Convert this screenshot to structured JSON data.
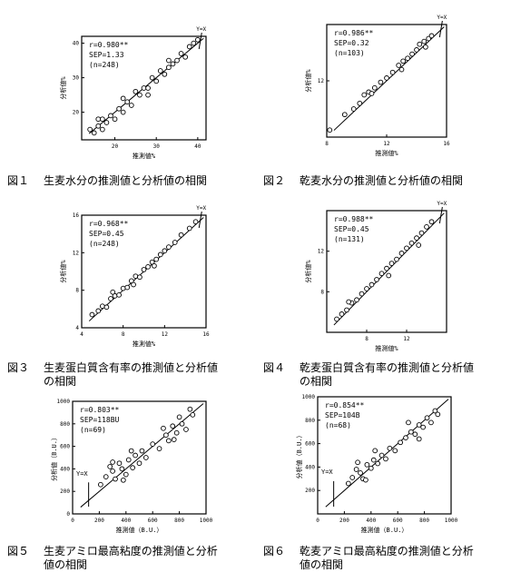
{
  "figures": [
    {
      "id": "fig1",
      "figure_number": "図１",
      "caption": "生麦水分の推測値と分析値の相関",
      "caption_line2": ""
    },
    {
      "id": "fig2",
      "figure_number": "図２",
      "caption": "乾麦水分の推測値と分析値の相関",
      "caption_line2": ""
    },
    {
      "id": "fig3",
      "figure_number": "図３",
      "caption": "生麦蛋白質含有率の推測値と分析値",
      "caption_line2": "の相関"
    },
    {
      "id": "fig4",
      "figure_number": "図４",
      "caption": "乾麦蛋白質含有率の推測値と分析値",
      "caption_line2": "の相関"
    },
    {
      "id": "fig5",
      "figure_number": "図５",
      "caption": "生麦アミロ最高粘度の推測値と分析",
      "caption_line2": "値の相関"
    },
    {
      "id": "fig6",
      "figure_number": "図６",
      "caption": "乾麦アミロ最高粘度の推測値と分析",
      "caption_line2": "値の相関"
    }
  ],
  "chart_data": [
    {
      "type": "scatter",
      "title": "",
      "xlabel": "推測値%",
      "ylabel": "分析値%",
      "xlim": [
        12,
        42
      ],
      "ylim": [
        12,
        42
      ],
      "xticks": [
        20,
        30,
        40
      ],
      "yticks": [
        20,
        30,
        40
      ],
      "stats": [
        "r=0.980**",
        "SEP=1.33",
        "(n=248)"
      ],
      "identity_label": "Y=X",
      "points": [
        [
          14,
          15
        ],
        [
          15,
          14
        ],
        [
          16,
          16
        ],
        [
          17,
          15
        ],
        [
          17,
          18
        ],
        [
          18,
          17
        ],
        [
          19,
          19
        ],
        [
          20,
          18
        ],
        [
          21,
          21
        ],
        [
          22,
          20
        ],
        [
          23,
          23
        ],
        [
          24,
          22
        ],
        [
          25,
          26
        ],
        [
          26,
          25
        ],
        [
          27,
          27
        ],
        [
          28,
          27
        ],
        [
          29,
          30
        ],
        [
          30,
          29
        ],
        [
          31,
          32
        ],
        [
          32,
          31
        ],
        [
          33,
          33
        ],
        [
          34,
          34
        ],
        [
          35,
          35
        ],
        [
          36,
          37
        ],
        [
          37,
          36
        ],
        [
          38,
          39
        ],
        [
          39,
          40
        ],
        [
          40,
          41
        ],
        [
          16,
          18
        ],
        [
          22,
          24
        ],
        [
          28,
          25
        ],
        [
          33,
          35
        ]
      ]
    },
    {
      "type": "scatter",
      "title": "",
      "xlabel": "推測値%",
      "ylabel": "分析値%",
      "xlim": [
        8,
        16
      ],
      "ylim": [
        8,
        16
      ],
      "xticks": [
        8,
        12,
        16
      ],
      "yticks": [
        12
      ],
      "stats": [
        "r=0.986**",
        "SEP=0.32",
        "(n=103)"
      ],
      "identity_label": "Y=X",
      "points": [
        [
          8.2,
          8.5
        ],
        [
          9.2,
          9.6
        ],
        [
          9.8,
          10
        ],
        [
          10.2,
          10.4
        ],
        [
          10.5,
          11
        ],
        [
          10.8,
          11.2
        ],
        [
          11.2,
          11.5
        ],
        [
          11.6,
          11.9
        ],
        [
          12,
          12.2
        ],
        [
          12.4,
          12.6
        ],
        [
          12.8,
          13.1
        ],
        [
          13.1,
          13.4
        ],
        [
          13.4,
          13.6
        ],
        [
          13.7,
          13.9
        ],
        [
          14,
          14.2
        ],
        [
          14.2,
          14.6
        ],
        [
          14.5,
          14.8
        ],
        [
          14.8,
          15
        ],
        [
          15,
          15.2
        ],
        [
          11,
          11.1
        ],
        [
          13,
          12.8
        ],
        [
          14.6,
          14.4
        ]
      ]
    },
    {
      "type": "scatter",
      "title": "",
      "xlabel": "推測値%",
      "ylabel": "分析値%",
      "xlim": [
        4,
        16
      ],
      "ylim": [
        4,
        16
      ],
      "xticks": [
        4,
        8,
        12,
        16
      ],
      "yticks": [
        4,
        8,
        12,
        16
      ],
      "stats": [
        "r=0.968**",
        "SEP=0.45",
        "(n=248)"
      ],
      "identity_label": "Y=X",
      "points": [
        [
          5,
          5.4
        ],
        [
          5.6,
          5.8
        ],
        [
          6,
          6.3
        ],
        [
          6.4,
          6.2
        ],
        [
          6.8,
          7.1
        ],
        [
          7.2,
          7.4
        ],
        [
          7.6,
          7.5
        ],
        [
          8,
          8.2
        ],
        [
          8.4,
          8.3
        ],
        [
          8.8,
          9
        ],
        [
          9.2,
          9.5
        ],
        [
          9.6,
          9.4
        ],
        [
          10,
          10.2
        ],
        [
          10.4,
          10.5
        ],
        [
          10.8,
          11
        ],
        [
          11.2,
          11.3
        ],
        [
          11.6,
          11.8
        ],
        [
          12,
          12.2
        ],
        [
          12.4,
          12.6
        ],
        [
          13,
          13.1
        ],
        [
          13.6,
          13.9
        ],
        [
          14.4,
          14.6
        ],
        [
          15,
          15.3
        ],
        [
          7,
          7.8
        ],
        [
          9,
          8.6
        ],
        [
          11,
          10.6
        ]
      ]
    },
    {
      "type": "scatter",
      "title": "",
      "xlabel": "推測値%",
      "ylabel": "分析値%",
      "xlim": [
        4,
        16
      ],
      "ylim": [
        4,
        16
      ],
      "xticks": [
        8,
        12
      ],
      "yticks": [
        8,
        12
      ],
      "stats": [
        "r=0.988**",
        "SEP=0.45",
        "(n=131)"
      ],
      "identity_label": "Y=X",
      "points": [
        [
          5,
          5.3
        ],
        [
          5.5,
          5.8
        ],
        [
          6,
          6.2
        ],
        [
          6.5,
          6.9
        ],
        [
          7,
          7.2
        ],
        [
          7.5,
          7.8
        ],
        [
          8,
          8.3
        ],
        [
          8.5,
          8.7
        ],
        [
          9,
          9.2
        ],
        [
          9.5,
          9.8
        ],
        [
          10,
          10.3
        ],
        [
          10.5,
          10.8
        ],
        [
          11,
          11.2
        ],
        [
          11.5,
          11.8
        ],
        [
          12,
          12.3
        ],
        [
          12.5,
          12.8
        ],
        [
          13,
          13.3
        ],
        [
          13.5,
          13.8
        ],
        [
          14,
          14.4
        ],
        [
          14.5,
          14.9
        ],
        [
          6.2,
          7
        ],
        [
          10.2,
          9.6
        ],
        [
          13.2,
          12.6
        ]
      ]
    },
    {
      "type": "scatter",
      "title": "",
      "xlabel": "推測値（B.U.）",
      "ylabel": "分析値（B.U.）",
      "xlim": [
        0,
        1000
      ],
      "ylim": [
        0,
        1000
      ],
      "xticks": [
        0,
        200,
        400,
        600,
        800,
        1000
      ],
      "yticks": [
        0,
        200,
        400,
        600,
        800,
        1000
      ],
      "stats": [
        "r=0.803**",
        "SEP=118BU",
        "(n=69)"
      ],
      "identity_label": "Y=X",
      "points": [
        [
          210,
          260
        ],
        [
          250,
          330
        ],
        [
          280,
          420
        ],
        [
          300,
          380
        ],
        [
          320,
          310
        ],
        [
          350,
          450
        ],
        [
          370,
          400
        ],
        [
          400,
          350
        ],
        [
          420,
          480
        ],
        [
          450,
          410
        ],
        [
          470,
          520
        ],
        [
          500,
          450
        ],
        [
          520,
          560
        ],
        [
          550,
          500
        ],
        [
          600,
          620
        ],
        [
          650,
          580
        ],
        [
          700,
          700
        ],
        [
          720,
          650
        ],
        [
          750,
          780
        ],
        [
          780,
          720
        ],
        [
          800,
          860
        ],
        [
          820,
          800
        ],
        [
          850,
          750
        ],
        [
          880,
          930
        ],
        [
          900,
          880
        ],
        [
          760,
          660
        ],
        [
          680,
          760
        ],
        [
          440,
          560
        ],
        [
          300,
          460
        ],
        [
          380,
          300
        ]
      ]
    },
    {
      "type": "scatter",
      "title": "",
      "xlabel": "推測値（B.U.）",
      "ylabel": "分析値（B.U.）",
      "xlim": [
        0,
        1000
      ],
      "ylim": [
        0,
        1000
      ],
      "xticks": [
        0,
        200,
        400,
        600,
        800,
        1000
      ],
      "yticks": [
        200,
        400,
        600,
        800,
        1000
      ],
      "stats": [
        "r=0.854**",
        "SEP=104B",
        "(n=68)"
      ],
      "identity_label": "Y=X",
      "points": [
        [
          230,
          260
        ],
        [
          260,
          310
        ],
        [
          290,
          380
        ],
        [
          320,
          350
        ],
        [
          340,
          300
        ],
        [
          370,
          420
        ],
        [
          400,
          390
        ],
        [
          420,
          460
        ],
        [
          450,
          430
        ],
        [
          480,
          500
        ],
        [
          510,
          470
        ],
        [
          540,
          560
        ],
        [
          580,
          540
        ],
        [
          620,
          610
        ],
        [
          660,
          650
        ],
        [
          700,
          700
        ],
        [
          730,
          680
        ],
        [
          760,
          760
        ],
        [
          790,
          740
        ],
        [
          820,
          820
        ],
        [
          850,
          780
        ],
        [
          880,
          880
        ],
        [
          900,
          850
        ],
        [
          760,
          640
        ],
        [
          680,
          780
        ],
        [
          430,
          540
        ],
        [
          300,
          440
        ],
        [
          360,
          290
        ]
      ]
    }
  ]
}
